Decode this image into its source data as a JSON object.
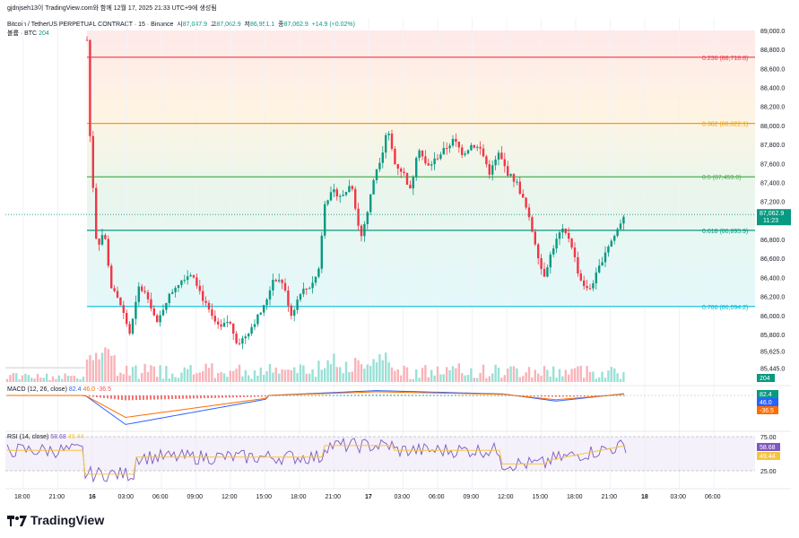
{
  "header": {
    "author_line": "gjdnjseh13이 TradingView.com와 함께 12월 17, 2025 21:33 UTC+9에 생성됨",
    "symbol": "Bitcoin / TetherUS PERPETUAL CONTRACT · 15 · Binance",
    "open_label": "시",
    "open": "87,047.9",
    "high_label": "고",
    "high": "87,062.9",
    "low_label": "저",
    "low": "86,951.1",
    "close_label": "종",
    "close": "87,062.9",
    "change": "+14.9 (+0.02%)",
    "volume_label": "볼륨 · BTC",
    "volume_value": "204"
  },
  "price_axis": {
    "ticks": [
      "89,000.0",
      "88,800.0",
      "88,600.0",
      "88,400.0",
      "88,200.0",
      "88,000.0",
      "87,800.0",
      "87,600.0",
      "87,400.0",
      "87,200.0",
      "86,800.0",
      "86,600.0",
      "86,400.0",
      "86,200.0",
      "86,000.0",
      "85,800.0",
      "85,625.0",
      "85,445.0"
    ],
    "last_price": "87,062.9",
    "countdown": "11:23",
    "volume_tag": "204"
  },
  "fib_levels": [
    {
      "label": "0.236 (88,718.8)",
      "price": 88718.8,
      "color": "#f23645"
    },
    {
      "label": "0.382 (88,022.1)",
      "price": 88022.1,
      "color": "#f59f00"
    },
    {
      "label": "0.5 (87,459.0)",
      "price": 87459.0,
      "color": "#4caf50"
    },
    {
      "label": "0.618 (86,895.9)",
      "price": 86895.9,
      "color": "#089981"
    },
    {
      "label": "0.786 (86,094.2)",
      "price": 86094.2,
      "color": "#00bcd4"
    }
  ],
  "macd": {
    "label": "MACD (12, 26, close)",
    "v1": "82.4",
    "v2": "46.0",
    "v3": "-36.5",
    "tags": [
      "82.4",
      "46.0",
      "-36.5"
    ]
  },
  "rsi": {
    "label": "RSI (14, close)",
    "v1": "58.68",
    "v2": "49.44",
    "ticks": [
      "75.00",
      "25.00"
    ],
    "tags": [
      "58.68",
      "49.44"
    ]
  },
  "time_axis": [
    "18:00",
    "21:00",
    "16",
    "03:00",
    "06:00",
    "09:00",
    "12:00",
    "15:00",
    "18:00",
    "21:00",
    "17",
    "03:00",
    "06:00",
    "09:00",
    "12:00",
    "15:00",
    "18:00",
    "21:00",
    "18",
    "03:00",
    "06:00"
  ],
  "brand": "TradingView",
  "colors": {
    "up": "#089981",
    "down": "#f23645",
    "macd": "#2962ff",
    "signal": "#ff6d00",
    "rsi": "#7e57c2",
    "rsi_ma": "#f5c542"
  }
}
